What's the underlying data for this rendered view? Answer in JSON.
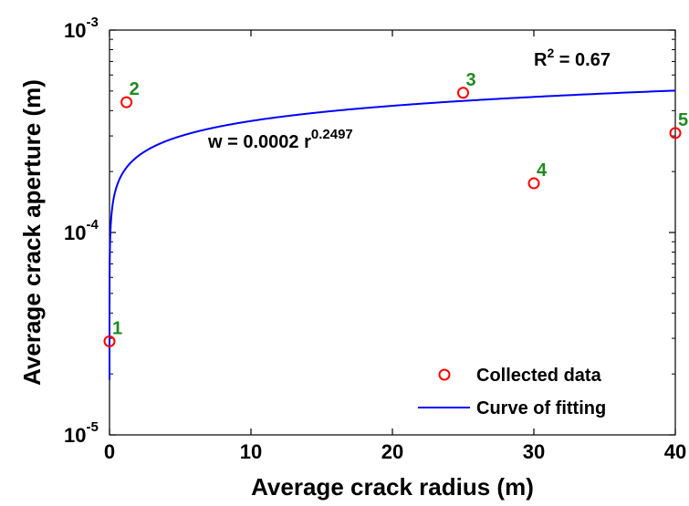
{
  "chart_data": {
    "type": "scatter",
    "title": "",
    "xlabel": "Average crack radius (m)",
    "ylabel": "Average crack aperture (m)",
    "xlim": [
      0,
      40
    ],
    "ylim": [
      1e-05,
      0.001
    ],
    "yscale": "log",
    "grid": false,
    "legend_position": "bottom-right",
    "x_ticks": [
      "0",
      "10",
      "20",
      "30",
      "40"
    ],
    "y_ticks": [
      {
        "base": "10",
        "exp": "-5"
      },
      {
        "base": "10",
        "exp": "-4"
      },
      {
        "base": "10",
        "exp": "-3"
      }
    ],
    "series": [
      {
        "name": "Collected data",
        "kind": "scatter",
        "color": "#ff0000",
        "points": [
          {
            "label": "1",
            "x": 0,
            "y": 2.9e-05
          },
          {
            "label": "2",
            "x": 1.2,
            "y": 0.00044
          },
          {
            "label": "3",
            "x": 25,
            "y": 0.00049
          },
          {
            "label": "4",
            "x": 30,
            "y": 0.000175
          },
          {
            "label": "5",
            "x": 40,
            "y": 0.00031
          }
        ]
      },
      {
        "name": "Curve of fitting",
        "kind": "line",
        "color": "#0000ff",
        "coefficient": 0.0002,
        "exponent": 0.2497
      }
    ],
    "point_label_color": "#1f8a1f",
    "annotations": {
      "r2": {
        "prefix": "R",
        "sup": "2",
        "suffix": " = 0.67"
      },
      "equation": {
        "prefix": "w = 0.0002 r",
        "sup": "0.2497"
      }
    }
  }
}
